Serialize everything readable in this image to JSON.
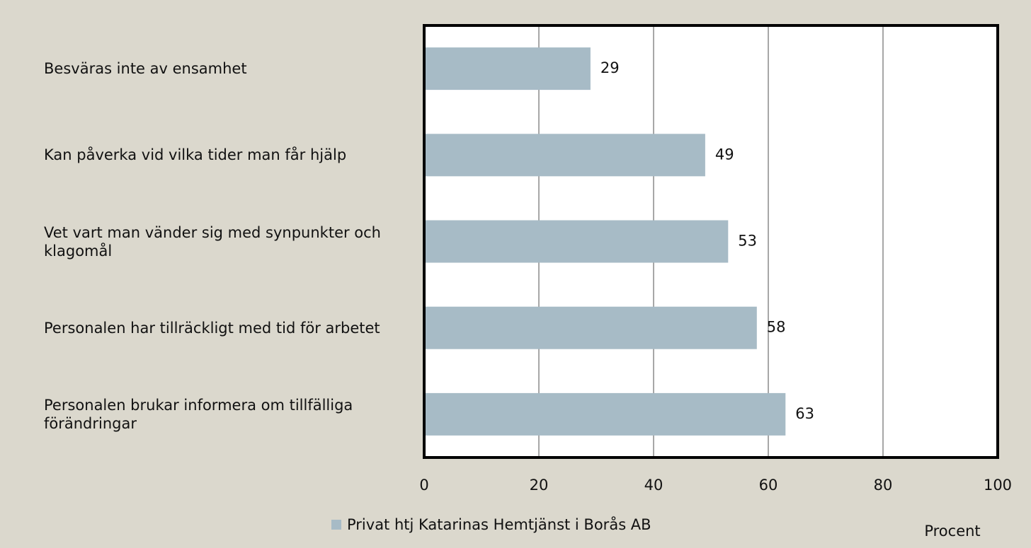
{
  "chart_data": {
    "type": "bar",
    "orientation": "horizontal",
    "categories": [
      "Besväras inte av ensamhet",
      "Kan påverka vid vilka tider man får hjälp",
      "Vet vart man vänder sig med synpunkter och klagomål",
      "Personalen har tillräckligt med tid för arbetet",
      "Personalen brukar informera om tillfälliga förändringar"
    ],
    "series": [
      {
        "name": "Privat htj Katarinas Hemtjänst i Borås AB",
        "color": "#a7bbc6",
        "values": [
          29,
          49,
          53,
          58,
          63
        ]
      }
    ],
    "xlabel": "Procent",
    "xlim": [
      0,
      100
    ],
    "xticks": [
      0,
      20,
      40,
      60,
      80,
      100
    ],
    "grid": true
  }
}
